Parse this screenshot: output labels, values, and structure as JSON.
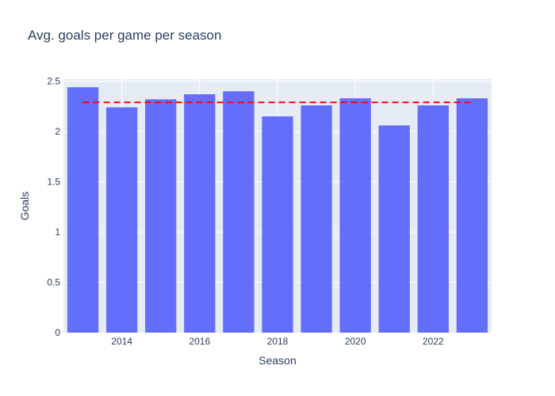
{
  "chart_data": {
    "type": "bar",
    "title": "Avg. goals per game per season",
    "xlabel": "Season",
    "ylabel": "Goals",
    "x": [
      2013,
      2014,
      2015,
      2016,
      2017,
      2018,
      2019,
      2020,
      2021,
      2022,
      2023
    ],
    "values": [
      2.44,
      2.24,
      2.32,
      2.37,
      2.4,
      2.15,
      2.26,
      2.33,
      2.06,
      2.26,
      2.33
    ],
    "reference_line": {
      "style": "dashed",
      "value": 2.29,
      "color": "#ff0000"
    },
    "x_ticks": [
      "2014",
      "2016",
      "2018",
      "2020",
      "2022"
    ],
    "y_ticks": [
      "0",
      "0.5",
      "1",
      "1.5",
      "2",
      "2.5"
    ],
    "ylim": [
      0,
      2.52
    ],
    "grid": true,
    "bar_color": "#636efa",
    "plot_bg": "#e5ecf6"
  }
}
